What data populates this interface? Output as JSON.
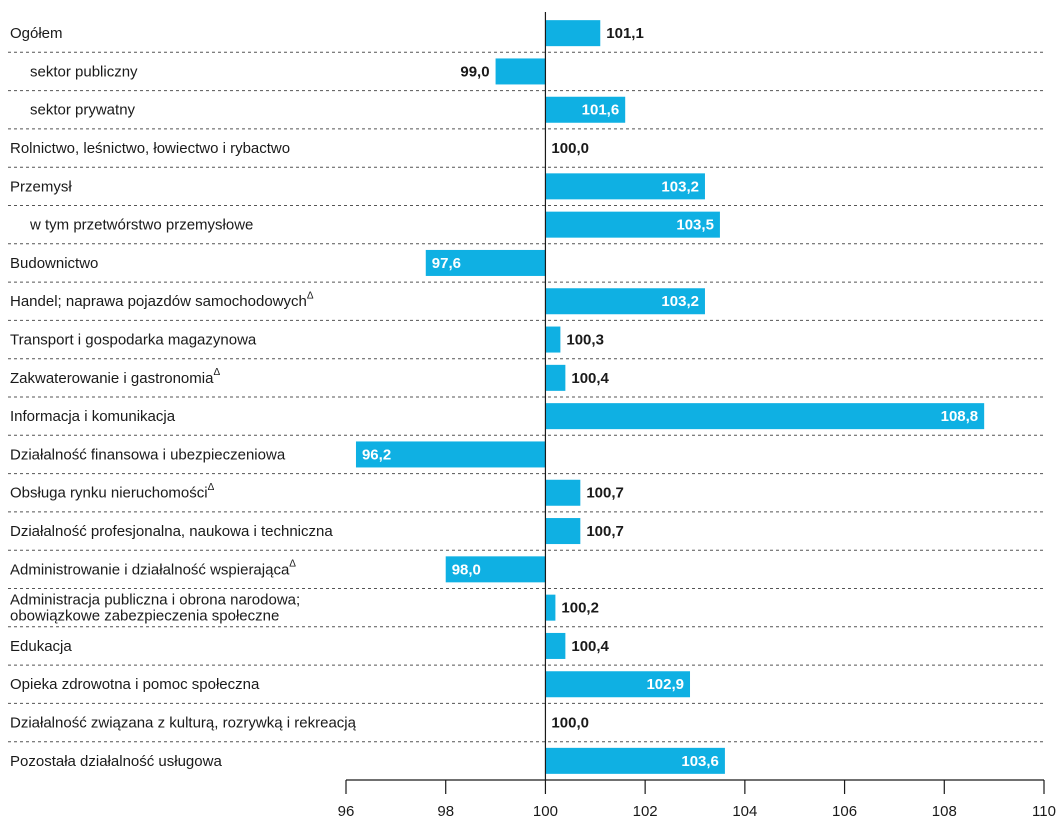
{
  "chart_data": {
    "type": "bar",
    "orientation": "horizontal",
    "baseline": 100,
    "color": "#0fb0e3",
    "categories": [
      "Ogółem",
      "sektor publiczny",
      "sektor prywatny",
      "Rolnictwo, leśnictwo, łowiectwo i rybactwo",
      "Przemysł",
      "w tym przetwórstwo przemysłowe",
      "Budownictwo",
      "Handel; naprawa pojazdów samochodowychΔ",
      "Transport i gospodarka magazynowa",
      "Zakwaterowanie i gastronomiaΔ",
      "Informacja i komunikacja",
      "Działalność finansowa i ubezpieczeniowa",
      "Obsługa rynku nieruchomościΔ",
      "Działalność profesjonalna, naukowa i techniczna",
      "Administrowanie i działalność wspierającaΔ",
      "Administracja publiczna i obrona narodowa;\nobowiązkowe zabezpieczenia społeczne",
      "Edukacja",
      "Opieka zdrowotna i pomoc społeczna",
      "Działalność związana z kulturą, rozrywką i rekreacją",
      "Pozostała działalność usługowa"
    ],
    "values": [
      101.1,
      99.0,
      101.6,
      100.0,
      103.2,
      103.5,
      97.6,
      103.2,
      100.3,
      100.4,
      108.8,
      96.2,
      100.7,
      100.7,
      98.0,
      100.2,
      100.4,
      102.9,
      100.0,
      103.6
    ],
    "value_labels": [
      "101,1",
      "99,0",
      "101,6",
      "100,0",
      "103,2",
      "103,5",
      "97,6",
      "103,2",
      "100,3",
      "100,4",
      "108,8",
      "96,2",
      "100,7",
      "100,7",
      "98,0",
      "100,2",
      "100,4",
      "102,9",
      "100,0",
      "103,6"
    ],
    "xlim": [
      96,
      110
    ],
    "xticks": [
      96,
      98,
      100,
      102,
      104,
      106,
      108,
      110
    ]
  }
}
